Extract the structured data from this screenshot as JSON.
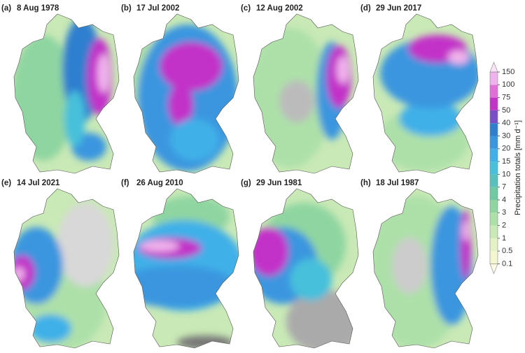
{
  "panels": [
    {
      "label": "(a)",
      "date": "8 Aug 1978"
    },
    {
      "label": "(b)",
      "date": "17 Jul 2002"
    },
    {
      "label": "(c)",
      "date": "12 Aug 2002"
    },
    {
      "label": "(d)",
      "date": "29 Jun 2017"
    },
    {
      "label": "(e)",
      "date": "14 Jul 2021"
    },
    {
      "label": "(f)",
      "date": "26 Aug 2010"
    },
    {
      "label": "(g)",
      "date": "29 Jun 1981"
    },
    {
      "label": "(h)",
      "date": "18 Jul 1987"
    }
  ],
  "colorbar": {
    "label": "Precipitation totals [mm d⁻¹]",
    "ticks": [
      0.1,
      0.5,
      1,
      2,
      3,
      4,
      7,
      10,
      15,
      20,
      30,
      40,
      50,
      75,
      100,
      150
    ],
    "colors": [
      "#fdfbe2",
      "#f3f6cf",
      "#e3f2c6",
      "#c9e9b6",
      "#ade0a9",
      "#8fd5a1",
      "#6fc9a3",
      "#58c1bd",
      "#46c0db",
      "#3fb0e8",
      "#3a96df",
      "#2f7fcf",
      "#7a4ec8",
      "#c233c8",
      "#e06fd9",
      "#f0b2ec",
      "#fbe3f8"
    ]
  }
}
